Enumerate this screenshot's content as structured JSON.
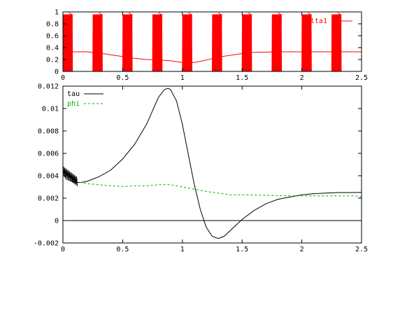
{
  "chart_data": [
    {
      "type": "line",
      "title": "",
      "xlabel": "",
      "ylabel": "",
      "xlim": [
        0,
        2.5
      ],
      "ylim": [
        0,
        1
      ],
      "xticks": [
        "0",
        "0.5",
        "1",
        "1.5",
        "2",
        "2.5"
      ],
      "yticks": [
        "0",
        "0.2",
        "0.4",
        "0.6",
        "0.8",
        "1"
      ],
      "grid": false,
      "legend_position": "top-right",
      "burst_starts": [
        0.0,
        0.25,
        0.5,
        0.75,
        1.0,
        1.25,
        1.5,
        1.75,
        2.0,
        2.25
      ],
      "burst_width": 0.08,
      "series": [
        {
          "name": "delta1",
          "color": "#ff0000",
          "style": "solid",
          "baseline": {
            "x": [
              0.0,
              0.1,
              0.2,
              0.3,
              0.4,
              0.5,
              0.6,
              0.7,
              0.8,
              0.9,
              1.0,
              1.1,
              1.2,
              1.3,
              1.4,
              1.5,
              1.6,
              1.8,
              2.0,
              2.2,
              2.5
            ],
            "y": [
              0.32,
              0.33,
              0.33,
              0.31,
              0.28,
              0.25,
              0.22,
              0.2,
              0.19,
              0.18,
              0.15,
              0.15,
              0.19,
              0.24,
              0.27,
              0.3,
              0.32,
              0.33,
              0.33,
              0.33,
              0.33
            ]
          }
        }
      ]
    },
    {
      "type": "line",
      "title": "",
      "xlabel": "",
      "ylabel": "",
      "xlim": [
        0,
        2.5
      ],
      "ylim": [
        -0.002,
        0.012
      ],
      "xticks": [
        "0",
        "0.5",
        "1",
        "1.5",
        "2",
        "2.5"
      ],
      "yticks": [
        "-0.002",
        "0",
        "0.002",
        "0.004",
        "0.006",
        "0.008",
        "0.01",
        "0.012"
      ],
      "zero_line": true,
      "grid": false,
      "legend_position": "top-left",
      "series": [
        {
          "name": "tau",
          "color": "#000000",
          "style": "solid",
          "x": [
            0.0,
            0.01,
            0.03,
            0.05,
            0.1,
            0.15,
            0.2,
            0.3,
            0.4,
            0.5,
            0.6,
            0.7,
            0.75,
            0.8,
            0.85,
            0.88,
            0.9,
            0.95,
            1.0,
            1.05,
            1.1,
            1.15,
            1.2,
            1.25,
            1.3,
            1.35,
            1.4,
            1.5,
            1.6,
            1.7,
            1.8,
            1.9,
            2.0,
            2.1,
            2.2,
            2.3,
            2.4,
            2.5
          ],
          "y": [
            0.0046,
            0.004,
            0.0037,
            0.0036,
            0.0034,
            0.0034,
            0.0035,
            0.0039,
            0.0045,
            0.0055,
            0.0068,
            0.0086,
            0.0098,
            0.011,
            0.0117,
            0.0118,
            0.0117,
            0.0107,
            0.0086,
            0.0059,
            0.0032,
            0.001,
            -0.0006,
            -0.0014,
            -0.0016,
            -0.0014,
            -0.0009,
            0.0001,
            0.0009,
            0.0015,
            0.0019,
            0.0021,
            0.0023,
            0.0024,
            0.00245,
            0.0025,
            0.0025,
            0.00252
          ]
        },
        {
          "name": "phi",
          "color": "#00b000",
          "style": "dashed",
          "x": [
            0.0,
            0.02,
            0.05,
            0.1,
            0.2,
            0.3,
            0.4,
            0.5,
            0.6,
            0.7,
            0.8,
            0.9,
            1.0,
            1.1,
            1.2,
            1.3,
            1.4,
            1.5,
            1.7,
            1.9,
            2.1,
            2.3,
            2.45,
            2.5
          ],
          "y": [
            0.0043,
            0.0039,
            0.0036,
            0.0035,
            0.0033,
            0.0032,
            0.0031,
            0.00305,
            0.0031,
            0.0031,
            0.0032,
            0.0032,
            0.003,
            0.0028,
            0.0026,
            0.00245,
            0.0023,
            0.0023,
            0.00225,
            0.0022,
            0.0022,
            0.0022,
            0.0022,
            0.0021
          ]
        }
      ]
    }
  ]
}
